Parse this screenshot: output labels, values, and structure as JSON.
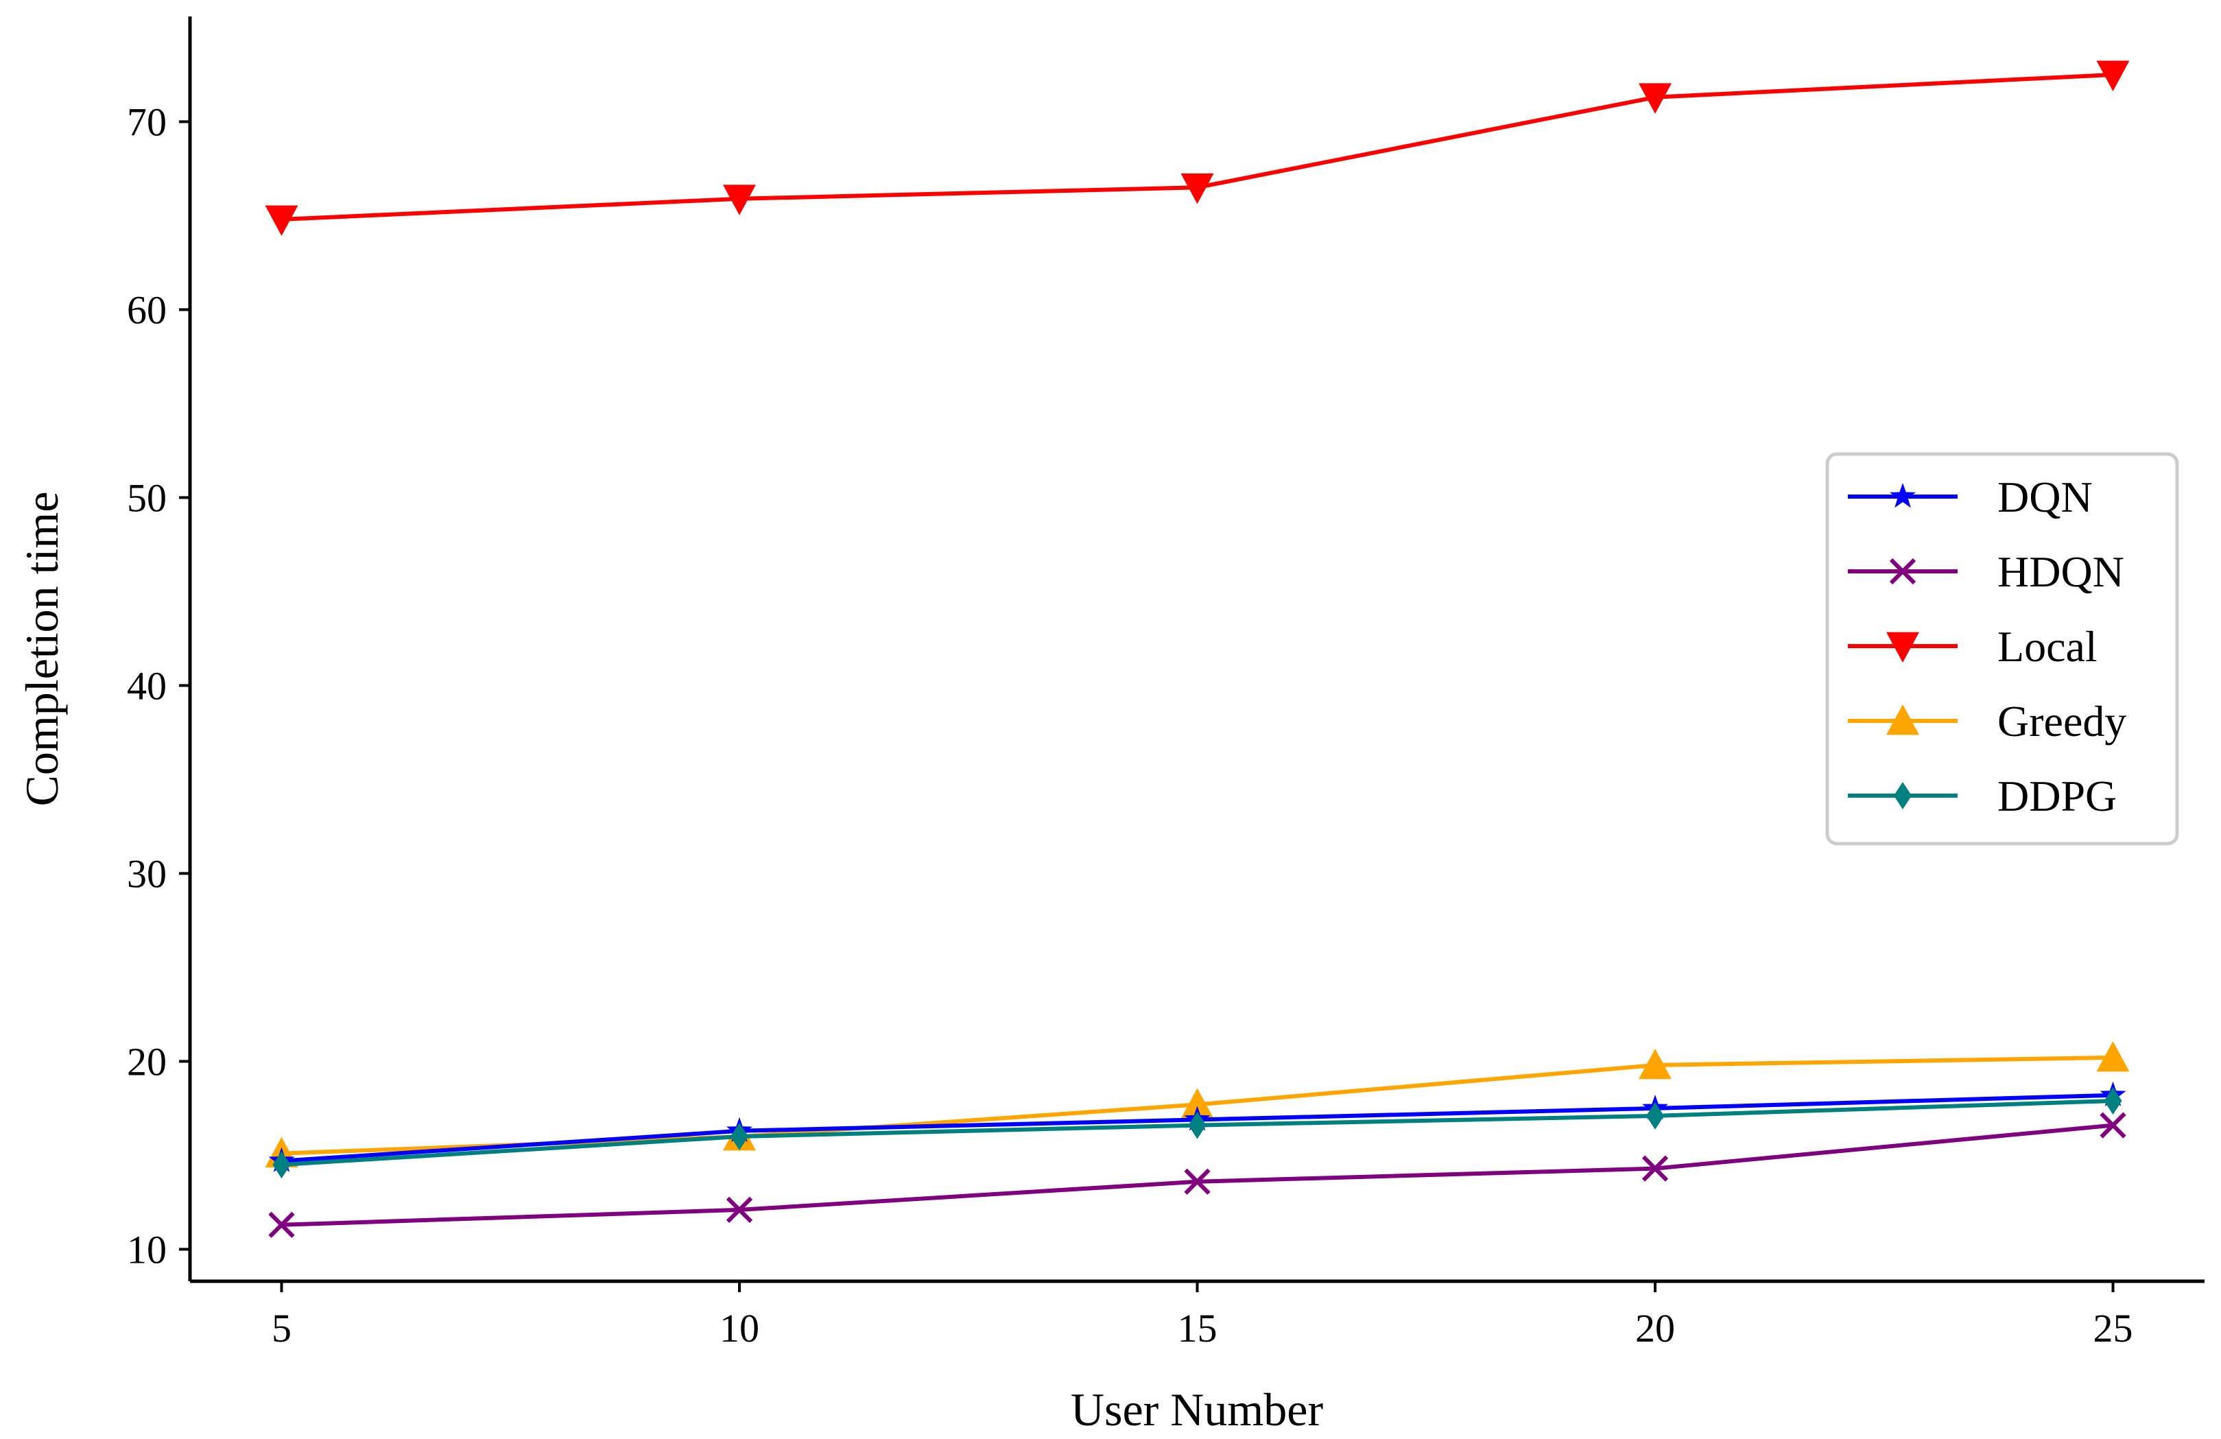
{
  "chart_data": {
    "type": "line",
    "title": "",
    "xlabel": "User Number",
    "ylabel": "Completion time",
    "x": [
      5,
      10,
      15,
      20,
      25
    ],
    "xticks": [
      5,
      10,
      15,
      20,
      25
    ],
    "yticks": [
      10,
      20,
      30,
      40,
      50,
      60,
      70
    ],
    "xlim": [
      4.0,
      26.0
    ],
    "ylim": [
      8.3,
      75.6
    ],
    "grid": false,
    "legend_position": "center-right",
    "series": [
      {
        "name": "DQN",
        "color": "#0000ff",
        "marker": "star",
        "values": [
          14.7,
          16.3,
          16.9,
          17.5,
          18.2
        ]
      },
      {
        "name": "HDQN",
        "color": "#800080",
        "marker": "x",
        "values": [
          11.3,
          12.1,
          13.6,
          14.3,
          16.6
        ]
      },
      {
        "name": "Local",
        "color": "#ff0000",
        "marker": "triangle-down",
        "values": [
          64.8,
          65.9,
          66.5,
          71.3,
          72.5
        ]
      },
      {
        "name": "Greedy",
        "color": "#ffa500",
        "marker": "triangle-up",
        "values": [
          15.1,
          16.0,
          17.7,
          19.8,
          20.2
        ]
      },
      {
        "name": "DDPG",
        "color": "#008080",
        "marker": "diamond",
        "values": [
          14.5,
          16.0,
          16.6,
          17.1,
          17.9
        ]
      }
    ]
  }
}
